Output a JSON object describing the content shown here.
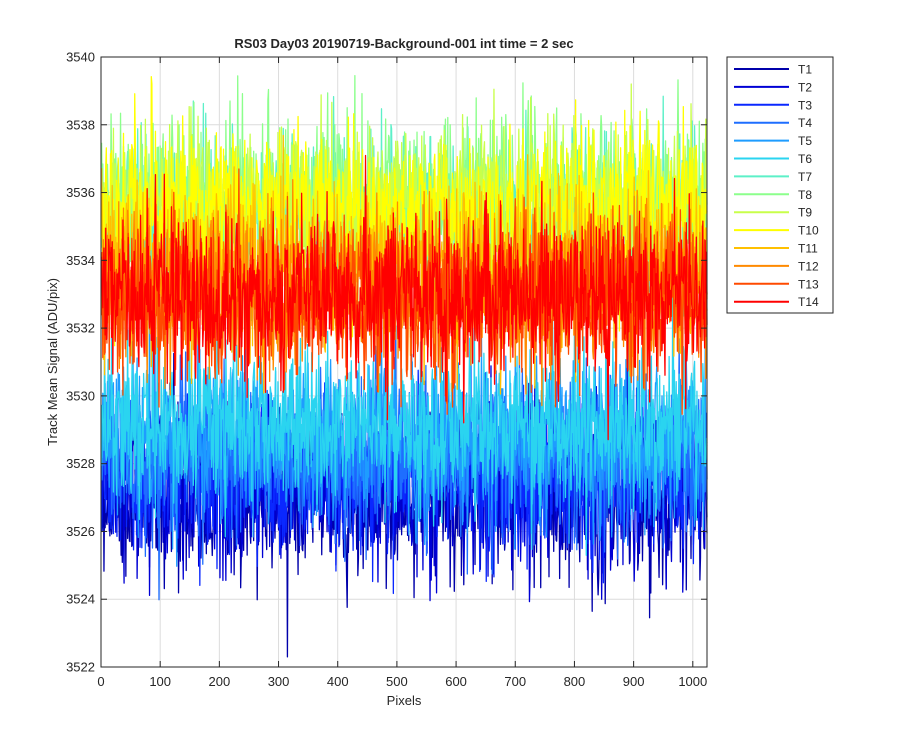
{
  "chart_data": {
    "type": "line",
    "title": "RS03 Day03 20190719-Background-001 int time = 2 sec",
    "xlabel": "Pixels",
    "ylabel": "Track Mean Signal (ADU/pix)",
    "xlim": [
      0,
      1024
    ],
    "ylim": [
      3522,
      3540
    ],
    "xticks": [
      0,
      100,
      200,
      300,
      400,
      500,
      600,
      700,
      800,
      900,
      1000
    ],
    "yticks": [
      3522,
      3524,
      3526,
      3528,
      3530,
      3532,
      3534,
      3536,
      3538,
      3540
    ],
    "grid": true,
    "legend_position": "outside-top-right",
    "x": {
      "start": 1,
      "stop": 1024,
      "step": 1
    },
    "noise_amplitude_adu": 1.2,
    "series": [
      {
        "name": "T1",
        "mean": 3527.0,
        "color": "#0000aa"
      },
      {
        "name": "T2",
        "mean": 3527.4,
        "color": "#0000d4"
      },
      {
        "name": "T3",
        "mean": 3527.8,
        "color": "#0a28ff"
      },
      {
        "name": "T4",
        "mean": 3528.3,
        "color": "#1e6eff"
      },
      {
        "name": "T5",
        "mean": 3528.7,
        "color": "#1e9cff"
      },
      {
        "name": "T6",
        "mean": 3529.1,
        "color": "#2ad4f0"
      },
      {
        "name": "T7",
        "mean": 3535.4,
        "color": "#5cf0c8"
      },
      {
        "name": "T8",
        "mean": 3535.8,
        "color": "#8cff8c"
      },
      {
        "name": "T9",
        "mean": 3535.6,
        "color": "#c8ff4a"
      },
      {
        "name": "T10",
        "mean": 3535.5,
        "color": "#ffff00"
      },
      {
        "name": "T11",
        "mean": 3533.8,
        "color": "#ffc000"
      },
      {
        "name": "T12",
        "mean": 3533.1,
        "color": "#ff8a00"
      },
      {
        "name": "T13",
        "mean": 3532.9,
        "color": "#ff4a00"
      },
      {
        "name": "T14",
        "mean": 3533.0,
        "color": "#ff0000"
      }
    ]
  }
}
